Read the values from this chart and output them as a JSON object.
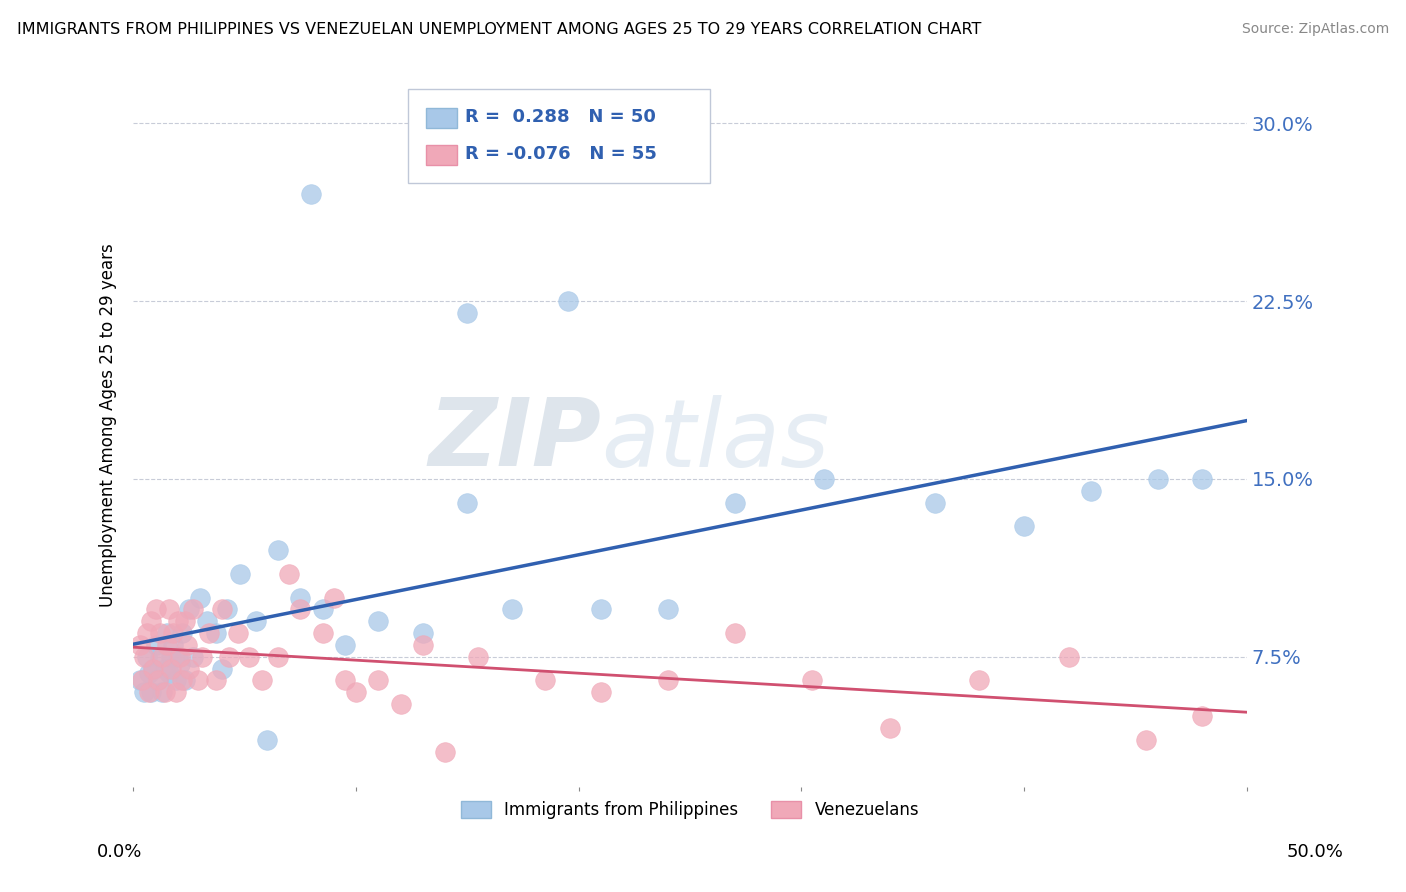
{
  "title": "IMMIGRANTS FROM PHILIPPINES VS VENEZUELAN UNEMPLOYMENT AMONG AGES 25 TO 29 YEARS CORRELATION CHART",
  "source": "Source: ZipAtlas.com",
  "ylabel": "Unemployment Among Ages 25 to 29 years",
  "ytick_labels": [
    "7.5%",
    "15.0%",
    "22.5%",
    "30.0%"
  ],
  "ytick_values": [
    0.075,
    0.15,
    0.225,
    0.3
  ],
  "xtick_values": [
    0.0,
    0.1,
    0.2,
    0.3,
    0.4,
    0.5
  ],
  "xlim": [
    0.0,
    0.5
  ],
  "ylim": [
    0.02,
    0.325
  ],
  "color_blue": "#a8c8e8",
  "color_pink": "#f0a8b8",
  "trendline_blue": "#3060b0",
  "trendline_pink": "#d05070",
  "background_color": "#ffffff",
  "grid_color": "#c8ccd8",
  "scatter_blue_x": [
    0.003,
    0.005,
    0.006,
    0.007,
    0.008,
    0.009,
    0.01,
    0.011,
    0.012,
    0.013,
    0.014,
    0.015,
    0.016,
    0.017,
    0.018,
    0.019,
    0.02,
    0.021,
    0.022,
    0.023,
    0.025,
    0.027,
    0.03,
    0.033,
    0.037,
    0.042,
    0.048,
    0.055,
    0.065,
    0.075,
    0.085,
    0.095,
    0.11,
    0.13,
    0.15,
    0.17,
    0.21,
    0.24,
    0.27,
    0.31,
    0.36,
    0.4,
    0.43,
    0.46,
    0.48,
    0.15,
    0.195,
    0.08,
    0.06,
    0.04
  ],
  "scatter_blue_y": [
    0.065,
    0.06,
    0.075,
    0.068,
    0.06,
    0.07,
    0.08,
    0.065,
    0.075,
    0.06,
    0.07,
    0.085,
    0.068,
    0.075,
    0.08,
    0.065,
    0.075,
    0.072,
    0.085,
    0.065,
    0.095,
    0.075,
    0.1,
    0.09,
    0.085,
    0.095,
    0.11,
    0.09,
    0.12,
    0.1,
    0.095,
    0.08,
    0.09,
    0.085,
    0.14,
    0.095,
    0.095,
    0.095,
    0.14,
    0.15,
    0.14,
    0.13,
    0.145,
    0.15,
    0.15,
    0.22,
    0.225,
    0.27,
    0.04,
    0.07
  ],
  "scatter_pink_x": [
    0.003,
    0.004,
    0.005,
    0.006,
    0.007,
    0.008,
    0.009,
    0.01,
    0.011,
    0.012,
    0.013,
    0.014,
    0.015,
    0.016,
    0.017,
    0.018,
    0.019,
    0.02,
    0.021,
    0.022,
    0.023,
    0.024,
    0.025,
    0.027,
    0.029,
    0.031,
    0.034,
    0.037,
    0.04,
    0.043,
    0.047,
    0.052,
    0.058,
    0.065,
    0.075,
    0.085,
    0.095,
    0.11,
    0.13,
    0.155,
    0.185,
    0.21,
    0.24,
    0.27,
    0.305,
    0.34,
    0.38,
    0.42,
    0.455,
    0.48,
    0.07,
    0.09,
    0.1,
    0.12,
    0.14
  ],
  "scatter_pink_y": [
    0.08,
    0.065,
    0.075,
    0.085,
    0.06,
    0.09,
    0.07,
    0.095,
    0.065,
    0.085,
    0.075,
    0.06,
    0.08,
    0.095,
    0.07,
    0.085,
    0.06,
    0.09,
    0.075,
    0.065,
    0.09,
    0.08,
    0.07,
    0.095,
    0.065,
    0.075,
    0.085,
    0.065,
    0.095,
    0.075,
    0.085,
    0.075,
    0.065,
    0.075,
    0.095,
    0.085,
    0.065,
    0.065,
    0.08,
    0.075,
    0.065,
    0.06,
    0.065,
    0.085,
    0.065,
    0.045,
    0.065,
    0.075,
    0.04,
    0.05,
    0.11,
    0.1,
    0.06,
    0.055,
    0.035
  ],
  "legend_text1": "R =  0.288   N = 50",
  "legend_text2": "R = -0.076   N = 55",
  "bottom_label1": "Immigrants from Philippines",
  "bottom_label2": "Venezuelans"
}
